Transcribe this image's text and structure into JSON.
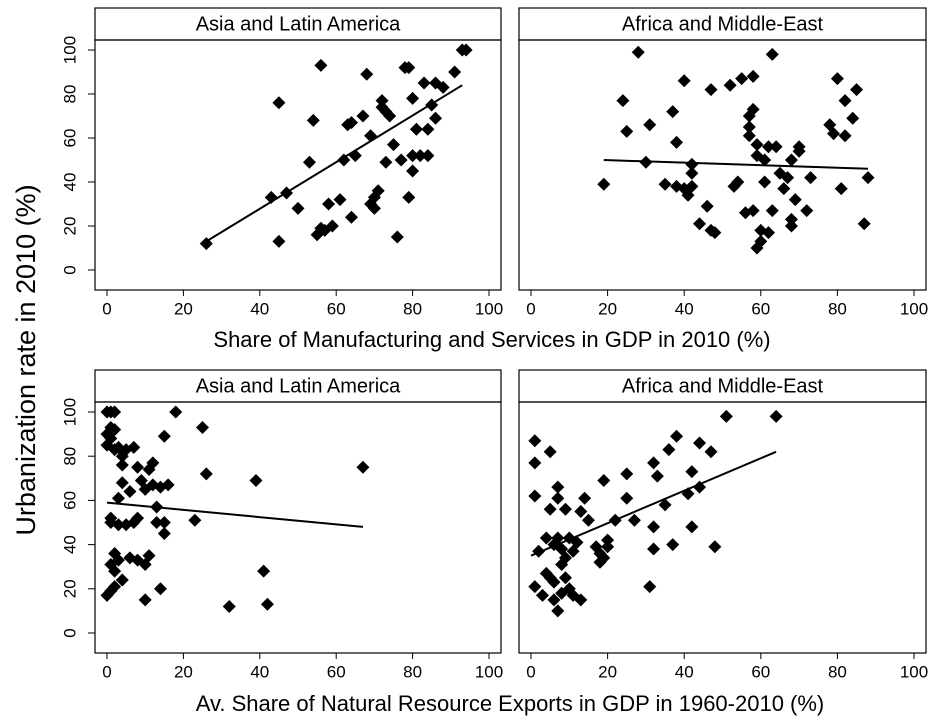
{
  "chart_data": [
    {
      "type": "scatter",
      "title": "Asia and Latin America",
      "ylabel": "Urbanization rate in 2010 (%)",
      "xlabel": "Share of Manufacturing and Services in GDP in 2010 (%)",
      "x": [
        26,
        43,
        45,
        45,
        47,
        50,
        53,
        54,
        55,
        56,
        56,
        57,
        58,
        59,
        61,
        62,
        63,
        64,
        64,
        65,
        67,
        68,
        69,
        69,
        70,
        70,
        71,
        72,
        72,
        73,
        73,
        74,
        75,
        76,
        77,
        78,
        79,
        79,
        80,
        80,
        80,
        81,
        82,
        83,
        84,
        84,
        85,
        86,
        86,
        88,
        91,
        93,
        94
      ],
      "values": [
        12,
        33,
        76,
        13,
        35,
        28,
        49,
        68,
        16,
        93,
        19,
        18,
        30,
        20,
        32,
        50,
        66,
        67,
        24,
        52,
        70,
        89,
        61,
        30,
        33,
        28,
        36,
        77,
        74,
        49,
        72,
        70,
        57,
        15,
        50,
        92,
        33,
        92,
        78,
        52,
        45,
        64,
        52,
        85,
        52,
        64,
        75,
        69,
        85,
        83,
        90,
        100,
        100
      ],
      "fit_x": [
        26,
        93
      ],
      "fit_values": [
        13,
        84
      ],
      "xlim": [
        0,
        100
      ],
      "ylim": [
        0,
        100
      ],
      "xticks": [
        0,
        20,
        40,
        60,
        80,
        100
      ],
      "yticks": [
        0,
        20,
        40,
        60,
        80,
        100
      ]
    },
    {
      "type": "scatter",
      "title": "Africa and Middle-East",
      "x": [
        19,
        24,
        25,
        28,
        30,
        31,
        35,
        37,
        38,
        38,
        40,
        40,
        41,
        42,
        42,
        42,
        44,
        46,
        47,
        48,
        47,
        52,
        53,
        54,
        55,
        56,
        57,
        57,
        57,
        58,
        58,
        58,
        59,
        59,
        59,
        60,
        60,
        61,
        61,
        62,
        62,
        63,
        63,
        64,
        65,
        66,
        67,
        68,
        68,
        68,
        69,
        70,
        70,
        72,
        73,
        78,
        79,
        80,
        81,
        82,
        82,
        84,
        85,
        87,
        88
      ],
      "values": [
        39,
        77,
        63,
        99,
        49,
        66,
        39,
        72,
        58,
        38,
        86,
        37,
        34,
        44,
        48,
        38,
        21,
        29,
        18,
        17,
        82,
        84,
        38,
        40,
        87,
        26,
        70,
        65,
        61,
        88,
        73,
        27,
        52,
        57,
        10,
        18,
        13,
        50,
        40,
        17,
        56,
        98,
        27,
        56,
        44,
        37,
        42,
        50,
        23,
        20,
        32,
        54,
        56,
        27,
        42,
        66,
        62,
        87,
        37,
        61,
        77,
        69,
        82,
        21,
        42
      ],
      "fit_x": [
        19,
        88
      ],
      "fit_values": [
        50,
        46
      ],
      "xlim": [
        0,
        100
      ],
      "ylim": [
        0,
        100
      ],
      "xticks": [
        0,
        20,
        40,
        60,
        80,
        100
      ],
      "yticks": [
        0,
        20,
        40,
        60,
        80,
        100
      ]
    },
    {
      "type": "scatter",
      "title": "Asia and Latin America",
      "xlabel": "Av. Share of Natural Resource Exports in GDP in 1960-2010 (%)",
      "x": [
        0,
        0,
        0,
        0,
        1,
        1,
        1,
        1,
        1,
        1,
        1,
        2,
        2,
        2,
        2,
        2,
        2,
        3,
        3,
        3,
        3,
        4,
        4,
        4,
        4,
        5,
        5,
        6,
        6,
        7,
        7,
        8,
        8,
        8,
        9,
        10,
        10,
        10,
        11,
        11,
        12,
        12,
        13,
        13,
        14,
        14,
        15,
        15,
        15,
        16,
        18,
        23,
        25,
        26,
        32,
        39,
        41,
        42,
        67
      ],
      "values": [
        100,
        90,
        85,
        17,
        100,
        93,
        88,
        52,
        50,
        31,
        19,
        100,
        92,
        83,
        36,
        28,
        21,
        84,
        61,
        49,
        33,
        80,
        76,
        68,
        24,
        83,
        49,
        64,
        34,
        84,
        50,
        75,
        52,
        33,
        69,
        65,
        31,
        15,
        35,
        74,
        67,
        77,
        57,
        50,
        66,
        20,
        89,
        45,
        50,
        67,
        100,
        51,
        93,
        72,
        12,
        69,
        28,
        13,
        75
      ],
      "fit_x": [
        0,
        67
      ],
      "fit_values": [
        59,
        48
      ],
      "xlim": [
        0,
        100
      ],
      "ylim": [
        0,
        100
      ],
      "xticks": [
        0,
        20,
        40,
        60,
        80,
        100
      ],
      "yticks": [
        0,
        20,
        40,
        60,
        80,
        100
      ]
    },
    {
      "type": "scatter",
      "title": "Africa and Middle-East",
      "x": [
        1,
        1,
        1,
        1,
        2,
        3,
        4,
        4,
        5,
        5,
        5,
        6,
        6,
        6,
        7,
        7,
        7,
        7,
        8,
        8,
        8,
        9,
        9,
        9,
        10,
        10,
        11,
        11,
        12,
        13,
        13,
        14,
        15,
        17,
        18,
        18,
        19,
        19,
        20,
        20,
        22,
        25,
        25,
        27,
        31,
        32,
        32,
        32,
        33,
        35,
        36,
        37,
        38,
        41,
        42,
        42,
        44,
        44,
        47,
        48,
        51,
        64
      ],
      "values": [
        21,
        77,
        87,
        62,
        37,
        17,
        27,
        43,
        82,
        56,
        25,
        23,
        40,
        15,
        10,
        66,
        61,
        43,
        18,
        31,
        38,
        25,
        34,
        56,
        20,
        43,
        37,
        17,
        41,
        15,
        55,
        61,
        51,
        39,
        32,
        36,
        69,
        34,
        39,
        42,
        51,
        61,
        72,
        51,
        21,
        38,
        77,
        48,
        71,
        58,
        83,
        40,
        89,
        63,
        48,
        73,
        66,
        86,
        82,
        39,
        98,
        98
      ],
      "fit_x": [
        0,
        64
      ],
      "fit_values": [
        35,
        82
      ],
      "xlim": [
        0,
        100
      ],
      "ylim": [
        0,
        100
      ],
      "xticks": [
        0,
        20,
        40,
        60,
        80,
        100
      ],
      "yticks": [
        0,
        20,
        40,
        60,
        80,
        100
      ]
    }
  ]
}
